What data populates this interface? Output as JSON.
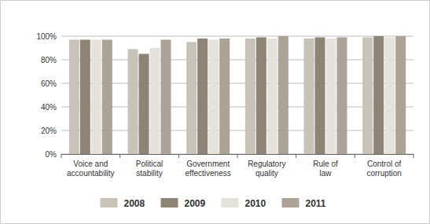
{
  "chart_data": {
    "type": "bar",
    "categories": [
      "Voice and accountability",
      "Political stability",
      "Government effectiveness",
      "Regulatory quality",
      "Rule of law",
      "Control of corruption"
    ],
    "series": [
      {
        "name": "2008",
        "color": "#c8c2b8",
        "values": [
          97,
          89,
          95,
          98,
          98,
          99
        ]
      },
      {
        "name": "2009",
        "color": "#8e8475",
        "values": [
          97,
          85,
          98,
          99,
          99,
          100
        ]
      },
      {
        "name": "2010",
        "color": "#e5e1db",
        "values": [
          97,
          90,
          97,
          98,
          98,
          99
        ]
      },
      {
        "name": "2011",
        "color": "#aba395",
        "values": [
          97,
          97,
          98,
          100,
          99,
          100
        ]
      }
    ],
    "ylim": [
      0,
      100
    ],
    "yticks": [
      {
        "value": 0,
        "label": "0%"
      },
      {
        "value": 20,
        "label": "20%"
      },
      {
        "value": 40,
        "label": "40%"
      },
      {
        "value": 60,
        "label": "60%"
      },
      {
        "value": 80,
        "label": "80%"
      },
      {
        "value": 100,
        "label": "100%"
      }
    ],
    "grid": true,
    "legend": "bottom"
  }
}
